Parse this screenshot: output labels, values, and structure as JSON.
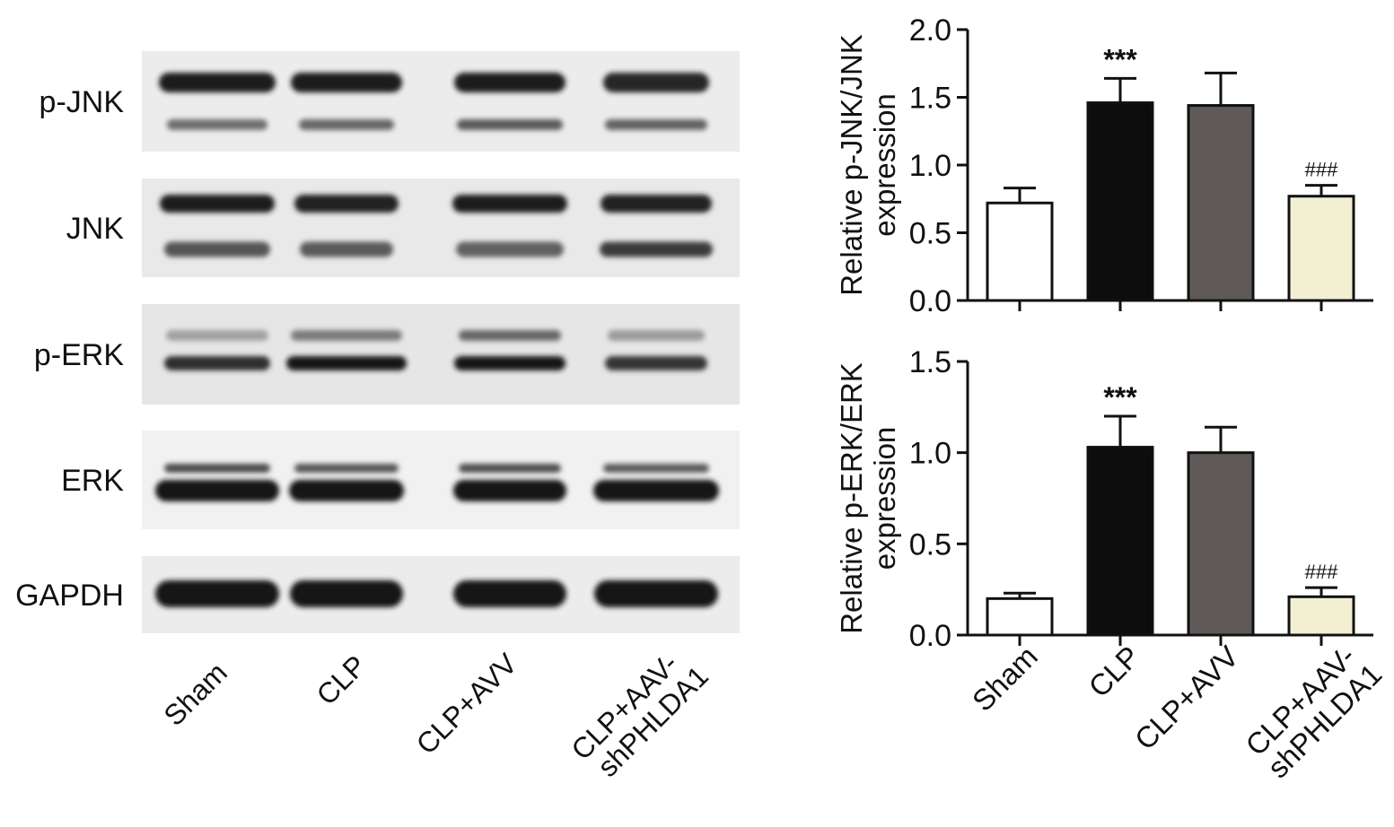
{
  "blot": {
    "lanes": [
      "Sham",
      "CLP",
      "CLP+AVV",
      "CLP+AAV-shPHLDA1"
    ],
    "lane_label_lines": [
      [
        "Sham"
      ],
      [
        "CLP"
      ],
      [
        "CLP+AVV"
      ],
      [
        "CLP+AAV-",
        "shPHLDA1"
      ]
    ],
    "rows": [
      "p-JNK",
      "JNK",
      "p-ERK",
      "ERK",
      "GAPDH"
    ]
  },
  "chart_data": [
    {
      "type": "bar",
      "categories": [
        "Sham",
        "CLP",
        "CLP+AVV",
        "CLP+AAV-shPHLDA1"
      ],
      "tick_label_lines": [
        [
          "Sham"
        ],
        [
          "CLP"
        ],
        [
          "CLP+AVV"
        ],
        [
          "CLP+AAV-",
          "shPHLDA1"
        ]
      ],
      "values": [
        0.72,
        1.46,
        1.44,
        0.77
      ],
      "errors": [
        0.11,
        0.18,
        0.24,
        0.08
      ],
      "bar_colors": [
        "#ffffff",
        "#0d0d0d",
        "#5f5a57",
        "#f3efd2"
      ],
      "annotations": [
        "",
        "***",
        "",
        "###"
      ],
      "ylabel_lines": [
        "Relative p-JNK/JNK",
        "expression"
      ],
      "ylim": [
        0,
        2.0
      ],
      "yticks": [
        "0.0",
        "0.5",
        "1.0",
        "1.5",
        "2.0"
      ]
    },
    {
      "type": "bar",
      "categories": [
        "Sham",
        "CLP",
        "CLP+AVV",
        "CLP+AAV-shPHLDA1"
      ],
      "tick_label_lines": [
        [
          "Sham"
        ],
        [
          "CLP"
        ],
        [
          "CLP+AVV"
        ],
        [
          "CLP+AAV-",
          "shPHLDA1"
        ]
      ],
      "values": [
        0.2,
        1.03,
        1.0,
        0.21
      ],
      "errors": [
        0.03,
        0.17,
        0.14,
        0.05
      ],
      "bar_colors": [
        "#ffffff",
        "#0d0d0d",
        "#5f5a57",
        "#f3efd2"
      ],
      "annotations": [
        "",
        "***",
        "",
        "###"
      ],
      "ylabel_lines": [
        "Relative p-ERK/ERK",
        "expression"
      ],
      "ylim": [
        0,
        1.5
      ],
      "yticks": [
        "0.0",
        "0.5",
        "1.0",
        "1.5"
      ]
    }
  ]
}
